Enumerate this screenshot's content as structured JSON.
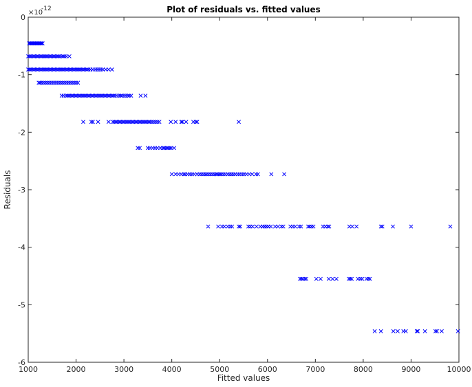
{
  "chart_data": {
    "type": "scatter",
    "title": "Plot of residuals vs. fitted values",
    "xlabel": "Fitted values",
    "ylabel": "Residuals",
    "y_exponent_label": "×10",
    "y_exponent_power": "-12",
    "xlim": [
      1000,
      10000
    ],
    "ylim": [
      -6,
      0
    ],
    "grid": false,
    "marker": "x",
    "marker_color": "#0000ff",
    "x_ticks": [
      1000,
      2000,
      3000,
      4000,
      5000,
      6000,
      7000,
      8000,
      9000,
      10000
    ],
    "y_ticks": [
      0,
      -1,
      -2,
      -3,
      -4,
      -5,
      -6
    ],
    "series": [
      {
        "points": [
          {
            "y": -0.455,
            "x": [
              1020,
              1040,
              1060,
              1080,
              1100,
              1120,
              1140,
              1160,
              1180,
              1200,
              1220,
              1240,
              1260,
              1280,
              1300
            ]
          },
          {
            "y": -0.68,
            "x": [
              1000,
              1030,
              1060,
              1090,
              1120,
              1150,
              1180,
              1210,
              1240,
              1270,
              1300,
              1330,
              1360,
              1390,
              1420,
              1450,
              1480,
              1510,
              1540,
              1570,
              1600,
              1630,
              1660,
              1700,
              1730,
              1760,
              1800,
              1860
            ]
          },
          {
            "y": -0.91,
            "x": [
              1000,
              1030,
              1060,
              1090,
              1120,
              1150,
              1180,
              1210,
              1240,
              1270,
              1300,
              1330,
              1360,
              1390,
              1420,
              1450,
              1480,
              1510,
              1540,
              1570,
              1600,
              1630,
              1660,
              1690,
              1720,
              1750,
              1780,
              1810,
              1840,
              1870,
              1900,
              1930,
              1960,
              1990,
              2020,
              2050,
              2080,
              2110,
              2140,
              2170,
              2200,
              2230,
              2260,
              2300,
              2350,
              2400,
              2440,
              2480,
              2520,
              2560,
              2620,
              2680,
              2750
            ]
          },
          {
            "y": -1.14,
            "x": [
              1220,
              1250,
              1280,
              1320,
              1360,
              1400,
              1440,
              1480,
              1520,
              1560,
              1600,
              1640,
              1680,
              1720,
              1760,
              1800,
              1840,
              1880,
              1920,
              1960,
              2000,
              2040
            ]
          },
          {
            "y": -1.365,
            "x": [
              1700,
              1740,
              1790,
              1820,
              1850,
              1880,
              1910,
              1940,
              1970,
              2000,
              2030,
              2060,
              2090,
              2120,
              2150,
              2180,
              2210,
              2240,
              2270,
              2300,
              2330,
              2360,
              2390,
              2420,
              2450,
              2480,
              2510,
              2540,
              2570,
              2600,
              2630,
              2660,
              2690,
              2720,
              2750,
              2780,
              2810,
              2850,
              2900,
              2930,
              2960,
              3000,
              3040,
              3080,
              3110,
              3150,
              3350,
              3450
            ]
          },
          {
            "y": -1.82,
            "x": [
              2150,
              2320,
              2350,
              2460,
              2680,
              2770,
              2800,
              2830,
              2860,
              2890,
              2920,
              2950,
              2980,
              3010,
              3040,
              3070,
              3100,
              3130,
              3160,
              3190,
              3220,
              3250,
              3280,
              3310,
              3340,
              3370,
              3400,
              3430,
              3460,
              3490,
              3520,
              3550,
              3580,
              3620,
              3660,
              3700,
              3740,
              3980,
              4080,
              4200,
              4220,
              4300,
              4450,
              4500,
              4530,
              5400
            ]
          },
          {
            "y": -2.275,
            "x": [
              3290,
              3330,
              3500,
              3540,
              3600,
              3650,
              3700,
              3760,
              3810,
              3840,
              3870,
              3900,
              3930,
              3960,
              3990,
              4050
            ]
          },
          {
            "y": -2.73,
            "x": [
              4000,
              4080,
              4140,
              4200,
              4250,
              4280,
              4330,
              4380,
              4420,
              4470,
              4530,
              4580,
              4620,
              4660,
              4700,
              4730,
              4770,
              4810,
              4850,
              4890,
              4920,
              4950,
              4980,
              5010,
              5040,
              5080,
              5120,
              5170,
              5210,
              5250,
              5290,
              5330,
              5380,
              5420,
              5470,
              5510,
              5560,
              5620,
              5680,
              5760,
              5800,
              6080,
              6350
            ]
          },
          {
            "y": -3.64,
            "x": [
              4760,
              4970,
              5050,
              5100,
              5170,
              5220,
              5260,
              5400,
              5430,
              5600,
              5640,
              5690,
              5770,
              5850,
              5900,
              5940,
              5980,
              6020,
              6070,
              6160,
              6220,
              6290,
              6330,
              6480,
              6530,
              6580,
              6660,
              6700,
              6850,
              6880,
              6920,
              6960,
              7160,
              7210,
              7260,
              7290,
              7710,
              7770,
              7860,
              8370,
              8400,
              8620,
              9000,
              9820
            ]
          },
          {
            "y": -4.55,
            "x": [
              6680,
              6710,
              6740,
              6780,
              6810,
              7020,
              7110,
              7280,
              7360,
              7440,
              7700,
              7730,
              7760,
              7890,
              7940,
              7980,
              8070,
              8110,
              8140
            ]
          },
          {
            "y": -5.46,
            "x": [
              8240,
              8370,
              8630,
              8720,
              8840,
              8890,
              9120,
              9140,
              9290,
              9510,
              9540,
              9640,
              9980
            ]
          }
        ]
      }
    ]
  }
}
